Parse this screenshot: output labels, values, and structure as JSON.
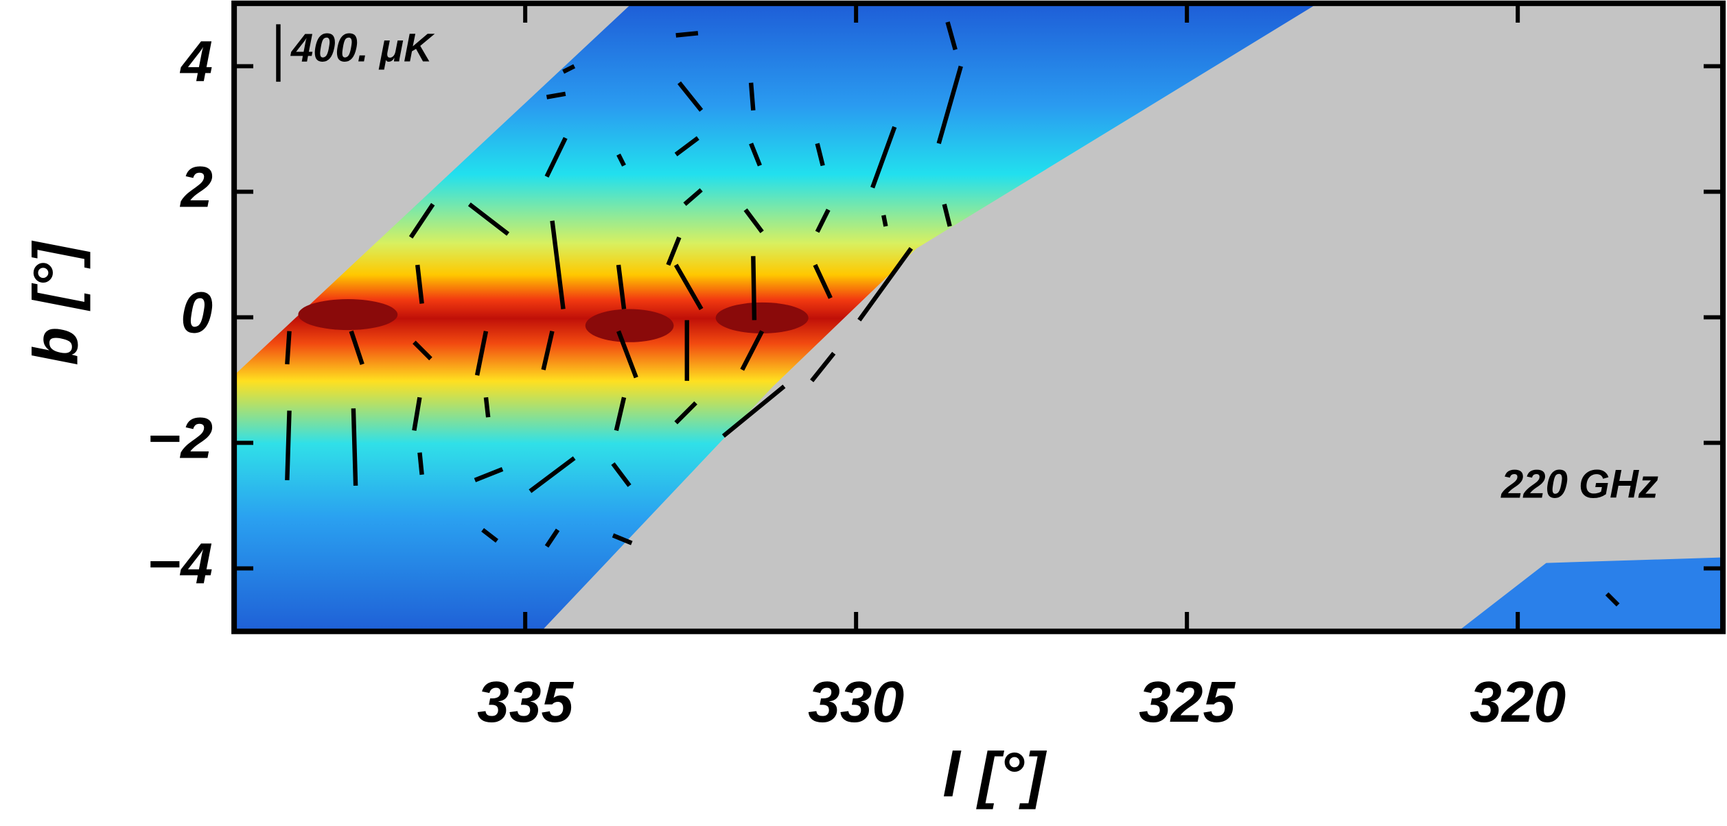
{
  "chart_data": {
    "type": "map",
    "xlabel": "l [°]",
    "ylabel": "b [°]",
    "annotations": [
      "400. μK",
      "220 GHz"
    ],
    "xlim": [
      339.4,
      316.9
    ],
    "ylim": [
      -5,
      5
    ],
    "xticks": [
      335,
      330,
      325,
      320
    ],
    "yticks": [
      {
        "value": -4,
        "label": "−4"
      },
      {
        "value": -2,
        "label": "−2"
      },
      0,
      2,
      4
    ]
  }
}
